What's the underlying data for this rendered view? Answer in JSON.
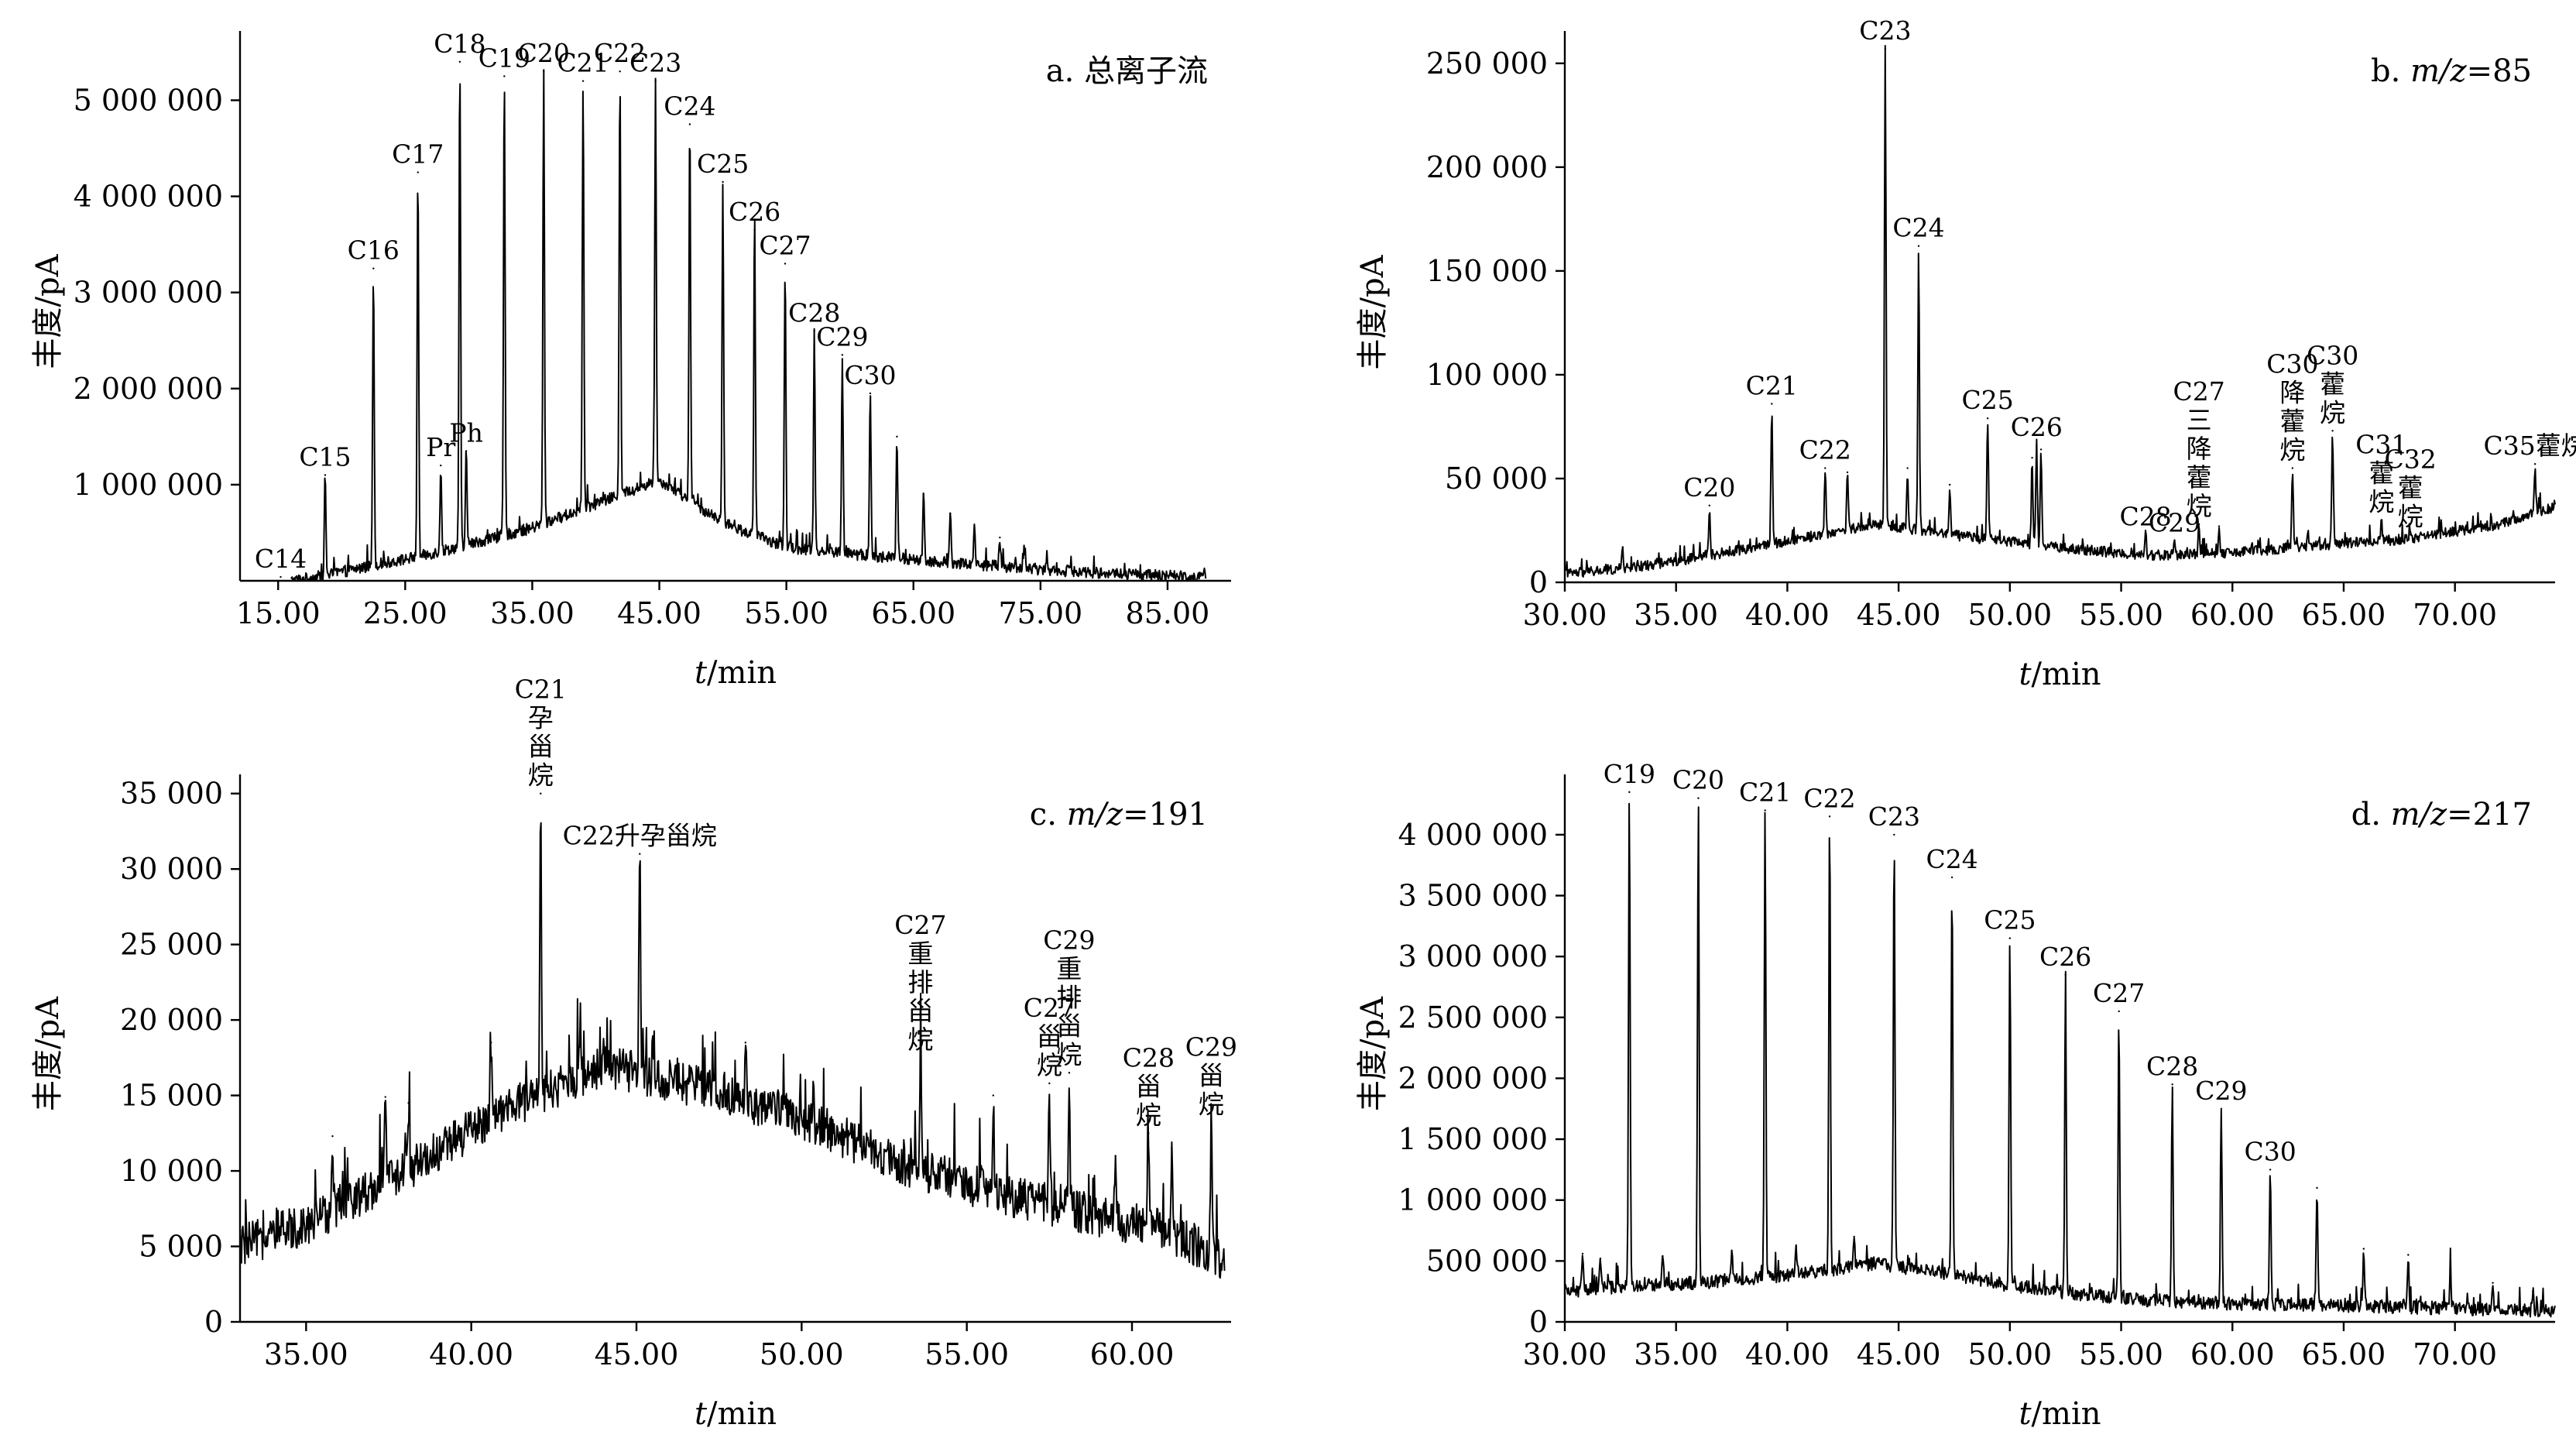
{
  "chart_data": [
    {
      "type": "line",
      "title": "a. 总离子流",
      "xlabel_italic": "t",
      "xlabel_unit": "/min",
      "ylabel": "丰度/pA",
      "xlim": [
        12.0,
        90.0
      ],
      "ylim": [
        0,
        5600000
      ],
      "xticks": [
        15,
        25,
        35,
        45,
        55,
        65,
        75,
        85
      ],
      "xtick_labels": [
        "15.00",
        "25.00",
        "35.00",
        "45.00",
        "55.00",
        "65.00",
        "75.00",
        "85.00"
      ],
      "yticks": [
        1000000,
        2000000,
        3000000,
        4000000,
        5000000
      ],
      "ytick_labels": [
        "1 000 000",
        "2 000 000",
        "3 000 000",
        "4 000 000",
        "5 000 000"
      ],
      "baseline": [
        [
          16,
          0
        ],
        [
          18.5,
          50000
        ],
        [
          22,
          150000
        ],
        [
          26,
          250000
        ],
        [
          30,
          380000
        ],
        [
          35,
          550000
        ],
        [
          40,
          800000
        ],
        [
          45,
          1050000
        ],
        [
          50,
          600000
        ],
        [
          55,
          350000
        ],
        [
          60,
          280000
        ],
        [
          65,
          220000
        ],
        [
          70,
          170000
        ],
        [
          75,
          120000
        ],
        [
          80,
          80000
        ],
        [
          85,
          50000
        ],
        [
          88,
          40000
        ]
      ],
      "noise": 60000,
      "peaks": [
        {
          "x": 15.2,
          "y": 40000,
          "label": "C14"
        },
        {
          "x": 18.7,
          "y": 1100000,
          "label": "C15"
        },
        {
          "x": 22.5,
          "y": 3250000,
          "label": "C16"
        },
        {
          "x": 26.0,
          "y": 4250000,
          "label": "C17"
        },
        {
          "x": 27.8,
          "y": 1200000,
          "label": "Pr"
        },
        {
          "x": 29.3,
          "y": 5400000,
          "label": "C18"
        },
        {
          "x": 29.8,
          "y": 1350000,
          "label": "Ph"
        },
        {
          "x": 32.8,
          "y": 5250000,
          "label": "C19"
        },
        {
          "x": 35.9,
          "y": 5300000,
          "label": "C20"
        },
        {
          "x": 39.0,
          "y": 5200000,
          "label": "C21"
        },
        {
          "x": 41.9,
          "y": 5300000,
          "label": "C22"
        },
        {
          "x": 44.7,
          "y": 5200000,
          "label": "C23"
        },
        {
          "x": 47.4,
          "y": 4750000,
          "label": "C24"
        },
        {
          "x": 50.0,
          "y": 4150000,
          "label": "C25"
        },
        {
          "x": 52.5,
          "y": 3650000,
          "label": "C26"
        },
        {
          "x": 54.9,
          "y": 3300000,
          "label": "C27"
        },
        {
          "x": 57.2,
          "y": 2600000,
          "label": "C28"
        },
        {
          "x": 59.4,
          "y": 2350000,
          "label": "C29"
        },
        {
          "x": 61.6,
          "y": 1950000,
          "label": "C30"
        },
        {
          "x": 63.7,
          "y": 1500000,
          "label": ""
        },
        {
          "x": 65.8,
          "y": 900000,
          "label": ""
        },
        {
          "x": 67.9,
          "y": 700000,
          "label": ""
        },
        {
          "x": 69.8,
          "y": 550000,
          "label": ""
        },
        {
          "x": 71.8,
          "y": 450000,
          "label": ""
        },
        {
          "x": 73.7,
          "y": 350000,
          "label": ""
        },
        {
          "x": 75.5,
          "y": 280000,
          "label": ""
        },
        {
          "x": 77.4,
          "y": 200000,
          "label": ""
        }
      ]
    },
    {
      "type": "line",
      "title_prefix": "b. ",
      "title_italic": "m/z",
      "title_suffix": "=85",
      "xlabel_italic": "t",
      "xlabel_unit": "/min",
      "ylabel": "丰度/pA",
      "xlim": [
        30.0,
        74.5
      ],
      "ylim": [
        0,
        260000
      ],
      "xticks": [
        30,
        35,
        40,
        45,
        50,
        55,
        60,
        65,
        70
      ],
      "xtick_labels": [
        "30.00",
        "35.00",
        "40.00",
        "45.00",
        "50.00",
        "55.00",
        "60.00",
        "65.00",
        "70.00"
      ],
      "yticks": [
        0,
        50000,
        100000,
        150000,
        200000,
        250000
      ],
      "ytick_labels": [
        "0",
        "50 000",
        "100 000",
        "150 000",
        "200 000",
        "250 000"
      ],
      "baseline": [
        [
          30,
          4000
        ],
        [
          33,
          7000
        ],
        [
          36,
          12000
        ],
        [
          40,
          20000
        ],
        [
          44,
          28000
        ],
        [
          48,
          22000
        ],
        [
          52,
          17000
        ],
        [
          56,
          13000
        ],
        [
          60,
          14000
        ],
        [
          64,
          18000
        ],
        [
          68,
          21000
        ],
        [
          72,
          28000
        ],
        [
          74.5,
          36000
        ]
      ],
      "noise": 2500,
      "peaks": [
        {
          "x": 32.6,
          "y": 17000,
          "label": ""
        },
        {
          "x": 36.5,
          "y": 37000,
          "label": "C20"
        },
        {
          "x": 39.3,
          "y": 86000,
          "label": "C21"
        },
        {
          "x": 41.7,
          "y": 55000,
          "label": "C22"
        },
        {
          "x": 42.7,
          "y": 53000,
          "label": ""
        },
        {
          "x": 44.4,
          "y": 257000,
          "label": "C23"
        },
        {
          "x": 45.4,
          "y": 55000,
          "label": ""
        },
        {
          "x": 45.9,
          "y": 162000,
          "label": "C24"
        },
        {
          "x": 47.3,
          "y": 47000,
          "label": ""
        },
        {
          "x": 49.0,
          "y": 79000,
          "label": "C25"
        },
        {
          "x": 51.0,
          "y": 60000,
          "label": ""
        },
        {
          "x": 51.2,
          "y": 66000,
          "label": "C26"
        },
        {
          "x": 51.4,
          "y": 64000,
          "label": ""
        },
        {
          "x": 56.1,
          "y": 23000,
          "label": "C28"
        },
        {
          "x": 57.4,
          "y": 20000,
          "label": "C29"
        },
        {
          "x": 58.5,
          "y": 28000,
          "label": "C27|三|降|藿|烷"
        },
        {
          "x": 59.4,
          "y": 27000,
          "label": ""
        },
        {
          "x": 62.7,
          "y": 55000,
          "label": "C30|降|藿|烷"
        },
        {
          "x": 63.4,
          "y": 23000,
          "label": ""
        },
        {
          "x": 64.5,
          "y": 73000,
          "label": "C30|藿|烷"
        },
        {
          "x": 66.7,
          "y": 30000,
          "label": "C31|藿|烷"
        },
        {
          "x": 68.0,
          "y": 23000,
          "label": "C32|藿|烷"
        },
        {
          "x": 73.6,
          "y": 57000,
          "label": "C35藿烷"
        }
      ]
    },
    {
      "type": "line",
      "title_prefix": "c. ",
      "title_italic": "m/z",
      "title_suffix": "=191",
      "xlabel_italic": "t",
      "xlabel_unit": "/min",
      "ylabel": "丰度/pA",
      "xlim": [
        33.0,
        63.0
      ],
      "ylim": [
        0,
        35500
      ],
      "xticks": [
        35,
        40,
        45,
        50,
        55,
        60
      ],
      "xtick_labels": [
        "35.00",
        "40.00",
        "45.00",
        "50.00",
        "55.00",
        "60.00"
      ],
      "yticks": [
        0,
        5000,
        10000,
        15000,
        20000,
        25000,
        30000,
        35000
      ],
      "ytick_labels": [
        "0",
        "5 000",
        "10 000",
        "15 000",
        "20 000",
        "25 000",
        "30 000",
        "35 000"
      ],
      "baseline": [
        [
          33,
          5000
        ],
        [
          35,
          6500
        ],
        [
          38,
          10000
        ],
        [
          41,
          14000
        ],
        [
          44,
          17000
        ],
        [
          47,
          15500
        ],
        [
          50,
          13500
        ],
        [
          53,
          10500
        ],
        [
          56,
          8500
        ],
        [
          59,
          7000
        ],
        [
          61,
          6000
        ],
        [
          62,
          5000
        ],
        [
          62.8,
          4000
        ]
      ],
      "noise": 1400,
      "peaks": [
        {
          "x": 35.8,
          "y": 12300,
          "label": ""
        },
        {
          "x": 37.4,
          "y": 14900,
          "label": ""
        },
        {
          "x": 38.1,
          "y": 14500,
          "label": ""
        },
        {
          "x": 40.6,
          "y": 18500,
          "label": ""
        },
        {
          "x": 42.1,
          "y": 35000,
          "label": "C21|孕|甾|烷"
        },
        {
          "x": 43.3,
          "y": 19800,
          "label": ""
        },
        {
          "x": 45.1,
          "y": 31000,
          "label": "C22升孕甾烷"
        },
        {
          "x": 48.3,
          "y": 18500,
          "label": ""
        },
        {
          "x": 53.6,
          "y": 17500,
          "label": "C27|重|排|甾|烷"
        },
        {
          "x": 55.8,
          "y": 15000,
          "label": ""
        },
        {
          "x": 57.5,
          "y": 15800,
          "label": "C27|甾|烷"
        },
        {
          "x": 58.1,
          "y": 16500,
          "label": "C29|重|排|甾|烷"
        },
        {
          "x": 59.5,
          "y": 11000,
          "label": ""
        },
        {
          "x": 60.5,
          "y": 12500,
          "label": "C28|甾|烷"
        },
        {
          "x": 61.2,
          "y": 11500,
          "label": ""
        },
        {
          "x": 62.4,
          "y": 13200,
          "label": "C29|甾|烷"
        }
      ]
    },
    {
      "type": "line",
      "title_prefix": "d. ",
      "title_italic": "m/z",
      "title_suffix": "=217",
      "xlabel_italic": "t",
      "xlabel_unit": "/min",
      "ylabel": "丰度/pA",
      "xlim": [
        30.0,
        74.5
      ],
      "ylim": [
        0,
        4400000
      ],
      "xticks": [
        30,
        35,
        40,
        45,
        50,
        55,
        60,
        65,
        70
      ],
      "xtick_labels": [
        "30.00",
        "35.00",
        "40.00",
        "45.00",
        "50.00",
        "55.00",
        "60.00",
        "65.00",
        "70.00"
      ],
      "yticks": [
        0,
        500000,
        1000000,
        1500000,
        2000000,
        2500000,
        3000000,
        3500000,
        4000000
      ],
      "ytick_labels": [
        "0",
        "500 000",
        "1 000 000",
        "1 500 000",
        "2 000 000",
        "2 500 000",
        "3 000 000",
        "3 500 000",
        "4 000 000"
      ],
      "baseline": [
        [
          30,
          250000
        ],
        [
          33,
          300000
        ],
        [
          36,
          320000
        ],
        [
          40,
          380000
        ],
        [
          44,
          480000
        ],
        [
          47,
          400000
        ],
        [
          50,
          300000
        ],
        [
          53,
          230000
        ],
        [
          56,
          180000
        ],
        [
          60,
          150000
        ],
        [
          64,
          140000
        ],
        [
          68,
          120000
        ],
        [
          72,
          100000
        ],
        [
          74.5,
          90000
        ]
      ],
      "noise": 55000,
      "peaks": [
        {
          "x": 30.8,
          "y": 560000,
          "label": ""
        },
        {
          "x": 31.6,
          "y": 520000,
          "label": ""
        },
        {
          "x": 32.9,
          "y": 4350000,
          "label": "C19"
        },
        {
          "x": 34.4,
          "y": 540000,
          "label": ""
        },
        {
          "x": 36.0,
          "y": 4300000,
          "label": "C20"
        },
        {
          "x": 37.5,
          "y": 580000,
          "label": ""
        },
        {
          "x": 39.0,
          "y": 4200000,
          "label": "C21"
        },
        {
          "x": 40.4,
          "y": 620000,
          "label": ""
        },
        {
          "x": 41.9,
          "y": 4150000,
          "label": "C22"
        },
        {
          "x": 43.0,
          "y": 700000,
          "label": ""
        },
        {
          "x": 44.8,
          "y": 4000000,
          "label": "C23"
        },
        {
          "x": 47.4,
          "y": 3650000,
          "label": "C24"
        },
        {
          "x": 50.0,
          "y": 3150000,
          "label": "C25"
        },
        {
          "x": 52.5,
          "y": 2850000,
          "label": "C26"
        },
        {
          "x": 54.9,
          "y": 2550000,
          "label": "C27"
        },
        {
          "x": 57.3,
          "y": 1950000,
          "label": "C28"
        },
        {
          "x": 59.5,
          "y": 1750000,
          "label": "C29"
        },
        {
          "x": 61.7,
          "y": 1250000,
          "label": "C30"
        },
        {
          "x": 63.8,
          "y": 1100000,
          "label": ""
        },
        {
          "x": 65.9,
          "y": 600000,
          "label": ""
        },
        {
          "x": 67.9,
          "y": 550000,
          "label": ""
        },
        {
          "x": 69.8,
          "y": 400000,
          "label": ""
        },
        {
          "x": 71.7,
          "y": 320000,
          "label": ""
        },
        {
          "x": 73.5,
          "y": 250000,
          "label": ""
        }
      ]
    }
  ]
}
